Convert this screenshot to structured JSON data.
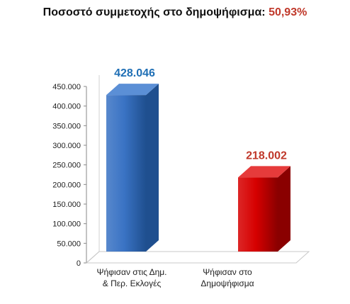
{
  "title_prefix": "Ποσοστό συμμετοχής στο δημοψήφισμα: ",
  "title_value": "50,93%",
  "colors": {
    "title_value": "#c0392b",
    "bar1_front": "#3a73c4",
    "bar1_side": "#1f4f8f",
    "bar1_top": "#5b8fd6",
    "bar2_front": "#d60000",
    "bar2_side": "#8a0000",
    "bar2_top": "#e63b3b",
    "label1": "#1f6fb5",
    "label2": "#c0392b"
  },
  "chart_data": {
    "type": "bar",
    "title": "Ποσοστό συμμετοχής στο δημοψήφισμα: 50,93%",
    "categories": [
      [
        "Ψήφισαν στις Δημ.",
        "& Περ. Εκλογές"
      ],
      [
        "Ψήφισαν στο",
        "Δημοψήφισμα"
      ]
    ],
    "values": [
      428046,
      218002
    ],
    "value_labels": [
      "428.046",
      "218.002"
    ],
    "ylim": [
      0,
      450000
    ],
    "yticks": [
      "0",
      "50.000",
      "100.000",
      "150.000",
      "200.000",
      "250.000",
      "300.000",
      "350.000",
      "400.000",
      "450.000"
    ],
    "grid": false,
    "legend": "none",
    "style": "3d"
  }
}
